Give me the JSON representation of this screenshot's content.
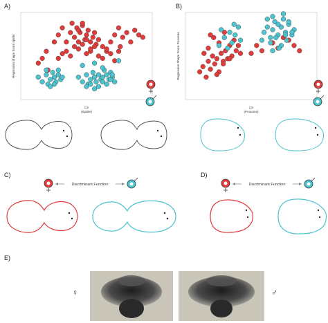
{
  "labels": {
    "a": "A)",
    "b": "B)",
    "c": "C)",
    "d": "D)",
    "e": "E)"
  },
  "colors": {
    "female": "#e03c3c",
    "male": "#4cc3cf",
    "outline": "#555555"
  },
  "df_text": "Discriminant Function",
  "symbols": {
    "female": "♀",
    "male": "♂"
  },
  "chart_data": [
    {
      "type": "scatter",
      "xlabel": "CS",
      "xlabel_sub": "(Spider)",
      "ylabel": "Regression Shape Score spider",
      "xlim": [
        0.5,
        2.1
      ],
      "ylim": [
        -0.12,
        0.24
      ],
      "series": [
        {
          "sex": "female",
          "x": [
            0.7,
            0.75,
            0.8,
            0.82,
            0.9,
            0.95,
            1.0,
            1.05,
            1.1,
            1.12,
            1.15,
            1.18,
            1.2,
            1.22,
            1.25,
            1.28,
            1.3,
            1.32,
            1.35,
            1.38,
            1.4,
            1.42,
            1.45,
            1.5,
            1.55,
            1.6,
            1.65,
            1.7,
            1.72,
            1.75,
            1.8,
            1.85,
            1.9,
            1.95,
            2.0,
            1.05,
            1.1,
            1.15,
            1.2,
            1.25,
            1.3,
            1.35,
            1.4,
            1.45,
            1.5,
            1.55,
            1.6,
            1.65,
            1.7,
            1.2,
            1.25,
            1.3,
            1.35,
            0.95,
            1.0
          ],
          "y": [
            0.03,
            0.05,
            0.08,
            0.0,
            0.12,
            0.15,
            0.18,
            0.12,
            0.16,
            0.2,
            0.14,
            0.18,
            0.12,
            0.16,
            0.19,
            0.13,
            0.15,
            0.17,
            0.12,
            0.14,
            0.16,
            0.11,
            0.13,
            0.1,
            0.08,
            0.12,
            0.15,
            0.18,
            0.1,
            0.14,
            0.16,
            0.12,
            0.17,
            0.15,
            0.14,
            0.08,
            0.06,
            0.1,
            0.09,
            0.11,
            0.07,
            0.08,
            0.1,
            0.06,
            0.05,
            0.09,
            0.07,
            0.04,
            0.08,
            0.17,
            0.2,
            0.13,
            0.09,
            0.05,
            0.07
          ]
        },
        {
          "sex": "male",
          "x": [
            0.7,
            0.75,
            0.8,
            0.82,
            0.85,
            0.88,
            0.9,
            0.92,
            0.95,
            0.98,
            1.0,
            0.8,
            0.85,
            0.9,
            0.95,
            1.2,
            1.25,
            1.3,
            1.32,
            1.35,
            1.38,
            1.4,
            1.42,
            1.45,
            1.48,
            1.5,
            1.52,
            1.55,
            1.58,
            1.6,
            1.62,
            1.65,
            1.3,
            1.35,
            1.4,
            1.45,
            1.5,
            1.55,
            1.6,
            1.25,
            1.4,
            1.5,
            1.62,
            1.7
          ],
          "y": [
            -0.03,
            -0.05,
            -0.02,
            -0.06,
            -0.04,
            -0.01,
            -0.03,
            -0.05,
            -0.02,
            -0.04,
            -0.03,
            0.0,
            -0.07,
            -0.06,
            0.0,
            -0.03,
            -0.05,
            -0.02,
            -0.06,
            -0.04,
            -0.01,
            -0.03,
            -0.05,
            -0.02,
            -0.04,
            -0.03,
            0.0,
            -0.02,
            -0.04,
            -0.01,
            -0.03,
            -0.05,
            -0.07,
            -0.06,
            -0.08,
            -0.07,
            -0.05,
            -0.06,
            -0.04,
            0.02,
            0.03,
            0.01,
            -0.02,
            0.04
          ]
        }
      ]
    },
    {
      "type": "scatter",
      "xlabel": "CS",
      "xlabel_sub": "(Prosoma)",
      "ylabel": "Regression Shape Score Prosoma",
      "xlim": [
        0.5,
        1.7
      ],
      "ylim": [
        -0.12,
        0.2
      ],
      "series": [
        {
          "sex": "female",
          "x": [
            0.62,
            0.65,
            0.68,
            0.7,
            0.72,
            0.74,
            0.76,
            0.78,
            0.8,
            0.82,
            0.84,
            0.86,
            0.88,
            0.9,
            0.92,
            0.94,
            0.96,
            0.98,
            1.0,
            0.7,
            0.75,
            0.8,
            0.85,
            0.9,
            1.1,
            1.15,
            1.2,
            1.3,
            1.35,
            1.4,
            1.45,
            1.5,
            1.55,
            0.66,
            0.72,
            0.78,
            0.84
          ],
          "y": [
            -0.02,
            0.0,
            -0.04,
            0.02,
            -0.01,
            0.04,
            0.01,
            0.03,
            -0.02,
            0.05,
            0.02,
            0.06,
            0.03,
            0.08,
            0.04,
            0.1,
            0.06,
            0.08,
            0.05,
            0.07,
            0.11,
            0.09,
            0.13,
            0.03,
            0.05,
            0.08,
            0.06,
            0.09,
            0.07,
            0.11,
            0.1,
            0.08,
            0.06,
            0.05,
            0.12,
            -0.03,
            0.01
          ]
        },
        {
          "sex": "male",
          "x": [
            0.8,
            0.85,
            0.9,
            0.92,
            0.95,
            0.98,
            1.0,
            0.82,
            0.88,
            0.94,
            1.2,
            1.22,
            1.25,
            1.28,
            1.3,
            1.32,
            1.35,
            1.38,
            1.4,
            1.42,
            1.45,
            1.48,
            1.5,
            1.25,
            1.3,
            1.35,
            1.4,
            1.45,
            1.28,
            1.33,
            1.38,
            1.43,
            1.48,
            1.3,
            1.36,
            1.42
          ],
          "y": [
            0.08,
            0.11,
            0.13,
            0.09,
            0.12,
            0.15,
            0.1,
            0.14,
            0.07,
            0.16,
            0.1,
            0.13,
            0.15,
            0.11,
            0.14,
            0.17,
            0.12,
            0.15,
            0.18,
            0.13,
            0.16,
            0.12,
            0.14,
            0.18,
            0.19,
            0.16,
            0.2,
            0.17,
            0.09,
            0.11,
            0.08,
            0.1,
            0.13,
            0.06,
            0.07,
            0.12
          ]
        }
      ]
    }
  ]
}
